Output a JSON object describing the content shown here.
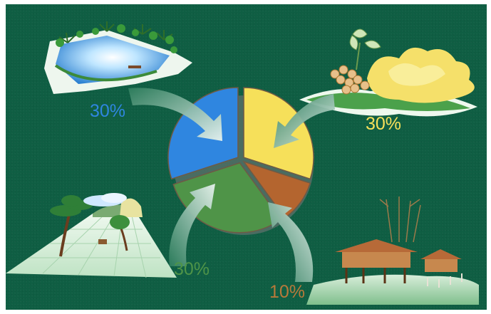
{
  "chart_data": {
    "type": "pie",
    "categories": [
      "",
      "",
      "",
      ""
    ],
    "values": [
      30,
      30,
      10,
      30
    ],
    "labels": [
      "30%",
      "30%",
      "10%",
      "30%"
    ],
    "colors": [
      "#2f86e0",
      "#f6e05a",
      "#b4652f",
      "#4f9448"
    ]
  },
  "icons": {
    "top_left": "pond-with-palm-trees-icon",
    "top_right": "flowers-and-fruit-icon",
    "bottom_left": "field-with-trees-icon",
    "bottom_right": "stilt-houses-icon"
  }
}
